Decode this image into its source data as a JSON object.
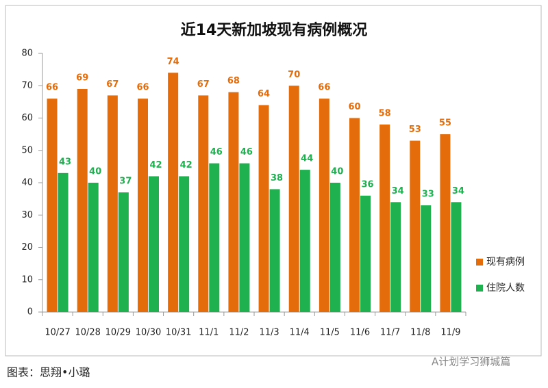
{
  "chart_data": {
    "type": "bar",
    "title": "近14天新加坡现有病例概况",
    "categories": [
      "10/27",
      "10/28",
      "10/29",
      "10/30",
      "10/31",
      "11/1",
      "11/2",
      "11/3",
      "11/4",
      "11/5",
      "11/6",
      "11/7",
      "11/8",
      "11/9"
    ],
    "series": [
      {
        "name": "现有病例",
        "color": "#e46c0a",
        "values": [
          66,
          69,
          67,
          66,
          74,
          67,
          68,
          64,
          70,
          66,
          60,
          58,
          53,
          55
        ]
      },
      {
        "name": "住院人数",
        "color": "#1fb050",
        "values": [
          43,
          40,
          37,
          42,
          42,
          46,
          46,
          38,
          44,
          40,
          36,
          34,
          33,
          34
        ]
      }
    ],
    "ylim": [
      0,
      80
    ],
    "yticks": [
      0,
      10,
      20,
      30,
      40,
      50,
      60,
      70,
      80
    ],
    "grid": false,
    "legend": "right"
  },
  "caption": "图表：思翔•小璐",
  "watermark": "A计划学习狮城篇"
}
